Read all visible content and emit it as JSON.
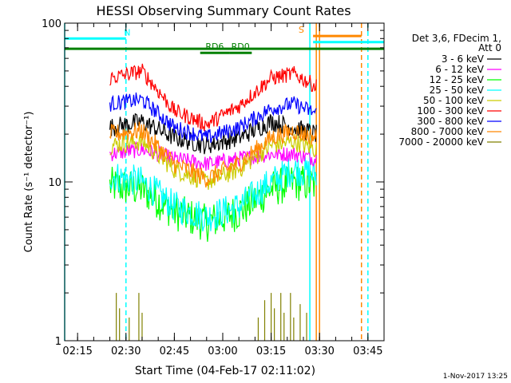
{
  "chart_data": {
    "type": "line",
    "title": "HESSI Observing Summary Count Rates",
    "xlabel": "Start Time (04-Feb-17 02:11:02)",
    "ylabel": "Count Rate (s⁻¹ detector⁻¹)",
    "yscale": "log",
    "xlim": [
      "02:11",
      "03:50"
    ],
    "ylim": [
      1,
      100
    ],
    "x_ticks": [
      "02:15",
      "02:30",
      "02:45",
      "03:00",
      "03:15",
      "03:30",
      "03:45"
    ],
    "y_ticks": [
      "1",
      "10",
      "100"
    ],
    "grid": false,
    "legend_position": "right",
    "legend_header": [
      "Det 3,6, FDecim 1,",
      "Att 0"
    ],
    "footer_text": "1-Nov-2017 13:25",
    "data_window": [
      "02:25",
      "03:29"
    ],
    "series": [
      {
        "name": "3 - 6 keV",
        "color": "#000000",
        "x": [
          "02:25",
          "02:35",
          "02:45",
          "02:55",
          "03:05",
          "03:15",
          "03:22",
          "03:29"
        ],
        "y": [
          22,
          24,
          19,
          17,
          19,
          24,
          22,
          20
        ]
      },
      {
        "name": "6 - 12 keV",
        "color": "#ff00ff",
        "x": [
          "02:25",
          "02:35",
          "02:45",
          "02:55",
          "03:05",
          "03:15",
          "03:22",
          "03:29"
        ],
        "y": [
          15,
          16,
          14,
          13,
          14,
          15,
          15,
          14
        ]
      },
      {
        "name": "12 - 25 keV",
        "color": "#00ff00",
        "x": [
          "02:25",
          "02:35",
          "02:45",
          "02:55",
          "03:05",
          "03:15",
          "03:22",
          "03:29"
        ],
        "y": [
          9.5,
          9,
          6.5,
          5.5,
          6.5,
          9,
          10,
          9.5
        ]
      },
      {
        "name": "25 - 50 keV",
        "color": "#00ffff",
        "x": [
          "02:25",
          "02:35",
          "02:45",
          "02:55",
          "03:05",
          "03:15",
          "03:22",
          "03:29"
        ],
        "y": [
          11,
          10,
          7,
          6,
          7,
          10,
          12,
          11
        ]
      },
      {
        "name": "50 - 100 keV",
        "color": "#cccc00",
        "x": [
          "02:25",
          "02:35",
          "02:45",
          "02:55",
          "03:05",
          "03:15",
          "03:22",
          "03:29"
        ],
        "y": [
          17,
          18,
          12,
          10,
          12,
          17,
          18,
          16
        ]
      },
      {
        "name": "100 - 300 keV",
        "color": "#ff0000",
        "x": [
          "02:25",
          "02:35",
          "02:45",
          "02:55",
          "03:05",
          "03:15",
          "03:22",
          "03:29"
        ],
        "y": [
          45,
          50,
          28,
          23,
          30,
          45,
          48,
          40
        ]
      },
      {
        "name": "300 - 800 keV",
        "color": "#0000ff",
        "x": [
          "02:25",
          "02:35",
          "02:45",
          "02:55",
          "03:05",
          "03:15",
          "03:22",
          "03:29"
        ],
        "y": [
          31,
          33,
          22,
          19,
          22,
          29,
          31,
          27
        ]
      },
      {
        "name": "800 - 7000 keV",
        "color": "#ff8800",
        "x": [
          "02:25",
          "02:35",
          "02:45",
          "02:55",
          "03:05",
          "03:15",
          "03:22",
          "03:29"
        ],
        "y": [
          20,
          21,
          13,
          10.5,
          13,
          19,
          21,
          19
        ]
      },
      {
        "name": "7000 - 20000 keV",
        "color": "#808000",
        "x": [
          "02:25",
          "02:35",
          "02:45",
          "02:55",
          "03:05",
          "03:15",
          "03:22",
          "03:29"
        ],
        "y": [
          1,
          1,
          1,
          1,
          1,
          1,
          1,
          1
        ]
      }
    ],
    "annotations": [
      {
        "label": "N",
        "color": "#00ffff",
        "kind": "bar",
        "start": "02:11",
        "end": "02:30",
        "y": 80
      },
      {
        "label": "S",
        "color": "#ff8800",
        "kind": "bar",
        "start": "03:28",
        "end": "03:43",
        "y": 83
      },
      {
        "label": "",
        "color": "#00ffff",
        "kind": "bar",
        "start": "03:28",
        "end": "03:50",
        "y": 76
      },
      {
        "label": "",
        "color": "#008000",
        "kind": "bar",
        "start": "02:11",
        "end": "03:50",
        "y": 69
      },
      {
        "label": "RD6",
        "color": "#008000",
        "kind": "bar",
        "start": "02:53",
        "end": "03:02",
        "y": 65
      },
      {
        "label": "RD0",
        "color": "#008000",
        "kind": "bar",
        "start": "03:02",
        "end": "03:09",
        "y": 65
      }
    ],
    "vertical_lines": [
      {
        "x": "02:11",
        "color": "#00ffff",
        "style": "solid"
      },
      {
        "x": "02:30",
        "color": "#00ffff",
        "style": "dashed"
      },
      {
        "x": "03:27",
        "color": "#00ffff",
        "style": "solid"
      },
      {
        "x": "03:29",
        "color": "#ff8800",
        "style": "solid"
      },
      {
        "x": "03:30",
        "color": "#ff8800",
        "style": "solid"
      },
      {
        "x": "03:43",
        "color": "#ff8800",
        "style": "dashed"
      },
      {
        "x": "03:45",
        "color": "#00ffff",
        "style": "dashed"
      }
    ],
    "spikes_7000_20000": [
      {
        "x": "02:27",
        "y": 2.0
      },
      {
        "x": "02:28",
        "y": 1.6
      },
      {
        "x": "02:31",
        "y": 1.4
      },
      {
        "x": "02:34",
        "y": 2.0
      },
      {
        "x": "02:35",
        "y": 1.5
      },
      {
        "x": "03:11",
        "y": 1.4
      },
      {
        "x": "03:13",
        "y": 1.8
      },
      {
        "x": "03:15",
        "y": 2.0
      },
      {
        "x": "03:16",
        "y": 1.6
      },
      {
        "x": "03:18",
        "y": 2.0
      },
      {
        "x": "03:19",
        "y": 1.5
      },
      {
        "x": "03:21",
        "y": 2.0
      },
      {
        "x": "03:22",
        "y": 1.4
      },
      {
        "x": "03:24",
        "y": 1.7
      },
      {
        "x": "03:26",
        "y": 1.5
      }
    ]
  }
}
